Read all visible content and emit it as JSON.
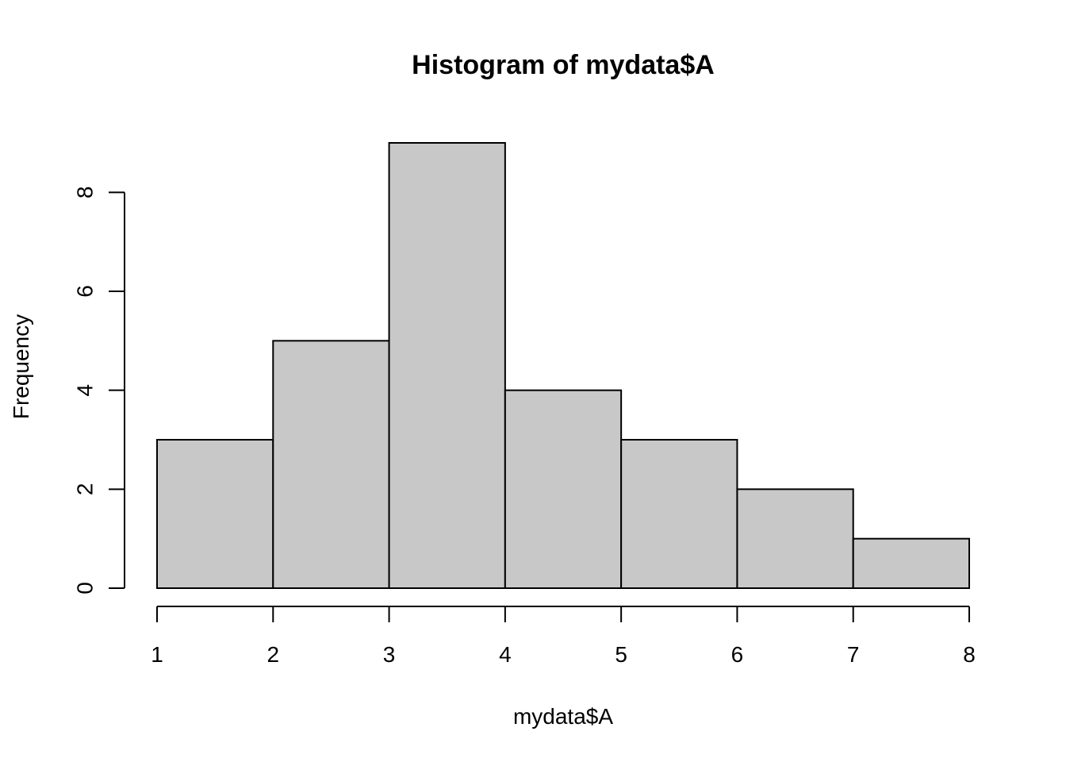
{
  "chart_data": {
    "type": "bar",
    "title": "Histogram of mydata$A",
    "xlabel": "mydata$A",
    "ylabel": "Frequency",
    "bins": [
      {
        "start": 1,
        "end": 2,
        "count": 3
      },
      {
        "start": 2,
        "end": 3,
        "count": 5
      },
      {
        "start": 3,
        "end": 4,
        "count": 9
      },
      {
        "start": 4,
        "end": 5,
        "count": 4
      },
      {
        "start": 5,
        "end": 6,
        "count": 3
      },
      {
        "start": 6,
        "end": 7,
        "count": 2
      },
      {
        "start": 7,
        "end": 8,
        "count": 1
      }
    ],
    "xlim": [
      1,
      8
    ],
    "ylim": [
      0,
      9
    ],
    "x_ticks": [
      "1",
      "2",
      "3",
      "4",
      "5",
      "6",
      "7",
      "8"
    ],
    "y_ticks": [
      "0",
      "2",
      "4",
      "6",
      "8"
    ],
    "grid": false,
    "bar_color": "#c8c8c8",
    "edge_color": "#000000"
  }
}
